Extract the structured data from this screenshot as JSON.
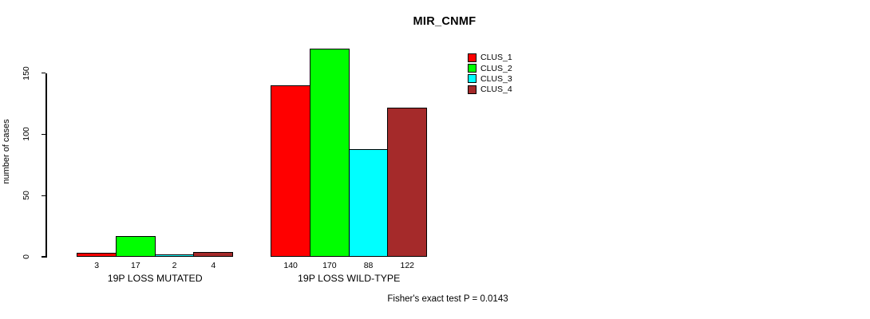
{
  "chart_data": {
    "type": "bar",
    "title": "MIR_CNMF",
    "xlabel": "",
    "ylabel": "number of cases",
    "categories": [
      "19P LOSS MUTATED",
      "19P LOSS WILD-TYPE"
    ],
    "series": [
      {
        "name": "CLUS_1",
        "color": "#ff0000",
        "values": [
          3,
          140
        ]
      },
      {
        "name": "CLUS_2",
        "color": "#00ff00",
        "values": [
          17,
          170
        ]
      },
      {
        "name": "CLUS_3",
        "color": "#00ffff",
        "values": [
          2,
          88
        ]
      },
      {
        "name": "CLUS_4",
        "color": "#a52a2a",
        "values": [
          4,
          122
        ]
      }
    ],
    "yticks": [
      0,
      50,
      100,
      150
    ],
    "ylim": [
      0,
      175
    ],
    "grid": false,
    "bar_value_labels_shown": true,
    "legend_position": "top-right",
    "annotation": "Fisher's exact test P = 0.0143"
  }
}
